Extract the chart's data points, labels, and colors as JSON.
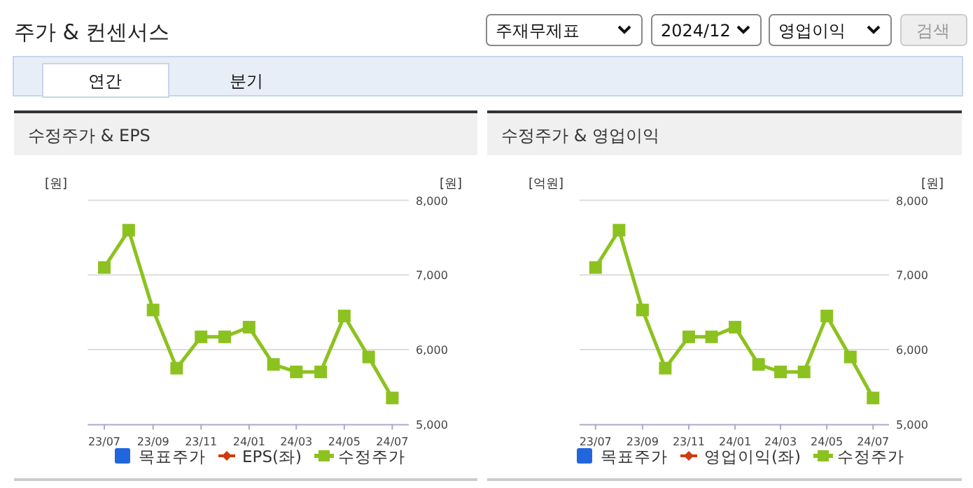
{
  "chart_data": [
    {
      "type": "other",
      "title": "주가 & 컨센서스",
      "annotations": [
        "주재무제표",
        "2024/12",
        "영업이익",
        "검색",
        "연간",
        "분기"
      ]
    },
    {
      "type": "line",
      "title": "수정주가 & EPS",
      "ylabel": "[원]",
      "y2label": "[원]",
      "x": [
        "2023-07",
        "2023-08",
        "2023-09",
        "2023-10",
        "2023-11",
        "2023-12",
        "2024-01",
        "2024-02",
        "2024-03",
        "2024-04",
        "2024-05",
        "2024-06",
        "2024-07"
      ],
      "xlim": [
        "2023-06-10",
        "2024-07-22"
      ],
      "xticks": [
        {
          "value": "2023-07",
          "label": "23/07"
        },
        {
          "value": "2023-09",
          "label": "23/09"
        },
        {
          "value": "2023-11",
          "label": "23/11"
        },
        {
          "value": "2024-01",
          "label": "24/01"
        },
        {
          "value": "2024-03",
          "label": "24/03"
        },
        {
          "value": "2024-05",
          "label": "24/05"
        },
        {
          "value": "2024-07",
          "label": "24/07"
        }
      ],
      "y2lim": [
        5000,
        8000
      ],
      "y2ticks": [
        {
          "value": 5000,
          "label": "5,000"
        },
        {
          "value": 6000,
          "label": "6,000"
        },
        {
          "value": 7000,
          "label": "7,000"
        },
        {
          "value": 8000,
          "label": "8,000"
        }
      ],
      "grid": "y",
      "legend": "bottom",
      "marker": "square",
      "series": [
        {
          "name": "목표주가",
          "color": "#2266dd",
          "values": [
            null,
            null,
            null,
            null,
            null,
            null,
            null,
            null,
            null,
            null,
            null,
            null,
            null
          ]
        },
        {
          "name": "EPS(좌)",
          "color": "#d03a10",
          "marker": "diamond",
          "values": [
            null,
            null,
            null,
            null,
            null,
            null,
            null,
            null,
            null,
            null,
            null,
            null,
            null
          ]
        },
        {
          "name": "수정주가",
          "color": "#8cc21f",
          "axis": "y2",
          "values": [
            7100,
            7600,
            6530,
            5750,
            6170,
            6170,
            6300,
            5800,
            5700,
            5700,
            6450,
            5900,
            5350
          ]
        }
      ]
    },
    {
      "type": "line",
      "title": "수정주가 & 영업이익",
      "ylabel": "[억원]",
      "y2label": "[원]",
      "x": [
        "2023-07",
        "2023-08",
        "2023-09",
        "2023-10",
        "2023-11",
        "2023-12",
        "2024-01",
        "2024-02",
        "2024-03",
        "2024-04",
        "2024-05",
        "2024-06",
        "2024-07"
      ],
      "xlim": [
        "2023-06-10",
        "2024-07-22"
      ],
      "xticks": [
        {
          "value": "2023-07",
          "label": "23/07"
        },
        {
          "value": "2023-09",
          "label": "23/09"
        },
        {
          "value": "2023-11",
          "label": "23/11"
        },
        {
          "value": "2024-01",
          "label": "24/01"
        },
        {
          "value": "2024-03",
          "label": "24/03"
        },
        {
          "value": "2024-05",
          "label": "24/05"
        },
        {
          "value": "2024-07",
          "label": "24/07"
        }
      ],
      "y2lim": [
        5000,
        8000
      ],
      "y2ticks": [
        {
          "value": 5000,
          "label": "5,000"
        },
        {
          "value": 6000,
          "label": "6,000"
        },
        {
          "value": 7000,
          "label": "7,000"
        },
        {
          "value": 8000,
          "label": "8,000"
        }
      ],
      "grid": "y",
      "legend": "bottom",
      "marker": "square",
      "series": [
        {
          "name": "목표주가",
          "color": "#2266dd",
          "values": [
            null,
            null,
            null,
            null,
            null,
            null,
            null,
            null,
            null,
            null,
            null,
            null,
            null
          ]
        },
        {
          "name": "영업이익(좌)",
          "color": "#d03a10",
          "marker": "diamond",
          "values": [
            null,
            null,
            null,
            null,
            null,
            null,
            null,
            null,
            null,
            null,
            null,
            null,
            null
          ]
        },
        {
          "name": "수정주가",
          "color": "#8cc21f",
          "axis": "y2",
          "values": [
            7100,
            7600,
            6530,
            5750,
            6170,
            6170,
            6300,
            5800,
            5700,
            5700,
            6450,
            5900,
            5350
          ]
        }
      ]
    }
  ]
}
